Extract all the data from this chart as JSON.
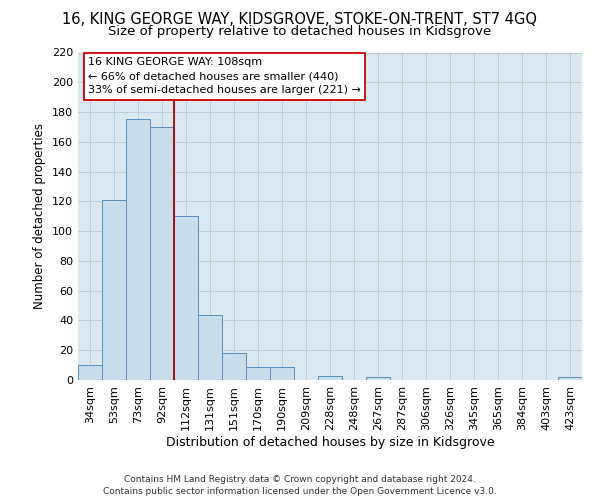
{
  "title": "16, KING GEORGE WAY, KIDSGROVE, STOKE-ON-TRENT, ST7 4GQ",
  "subtitle": "Size of property relative to detached houses in Kidsgrove",
  "xlabel": "Distribution of detached houses by size in Kidsgrove",
  "ylabel": "Number of detached properties",
  "bar_labels": [
    "34sqm",
    "53sqm",
    "73sqm",
    "92sqm",
    "112sqm",
    "131sqm",
    "151sqm",
    "170sqm",
    "190sqm",
    "209sqm",
    "228sqm",
    "248sqm",
    "267sqm",
    "287sqm",
    "306sqm",
    "326sqm",
    "345sqm",
    "365sqm",
    "384sqm",
    "403sqm",
    "423sqm"
  ],
  "bar_values": [
    10,
    121,
    175,
    170,
    110,
    44,
    18,
    9,
    9,
    0,
    3,
    0,
    2,
    0,
    0,
    0,
    0,
    0,
    0,
    0,
    2
  ],
  "bar_color": "#c9dcea",
  "bar_edge_color": "#5a8fba",
  "vline_x_index": 4,
  "vline_color": "#aa0000",
  "ylim": [
    0,
    220
  ],
  "yticks": [
    0,
    20,
    40,
    60,
    80,
    100,
    120,
    140,
    160,
    180,
    200,
    220
  ],
  "annotation_title": "16 KING GEORGE WAY: 108sqm",
  "annotation_line1": "← 66% of detached houses are smaller (440)",
  "annotation_line2": "33% of semi-detached houses are larger (221) →",
  "annotation_box_facecolor": "#ffffff",
  "annotation_box_edgecolor": "#cc0000",
  "footer_line1": "Contains HM Land Registry data © Crown copyright and database right 2024.",
  "footer_line2": "Contains public sector information licensed under the Open Government Licence v3.0.",
  "plot_bg_color": "#dce8f0",
  "fig_bg_color": "#ffffff",
  "grid_color": "#b8c8d8",
  "title_fontsize": 10.5,
  "subtitle_fontsize": 9.5,
  "ylabel_fontsize": 8.5,
  "xlabel_fontsize": 9,
  "tick_fontsize": 8,
  "ann_fontsize": 8,
  "footer_fontsize": 6.5
}
